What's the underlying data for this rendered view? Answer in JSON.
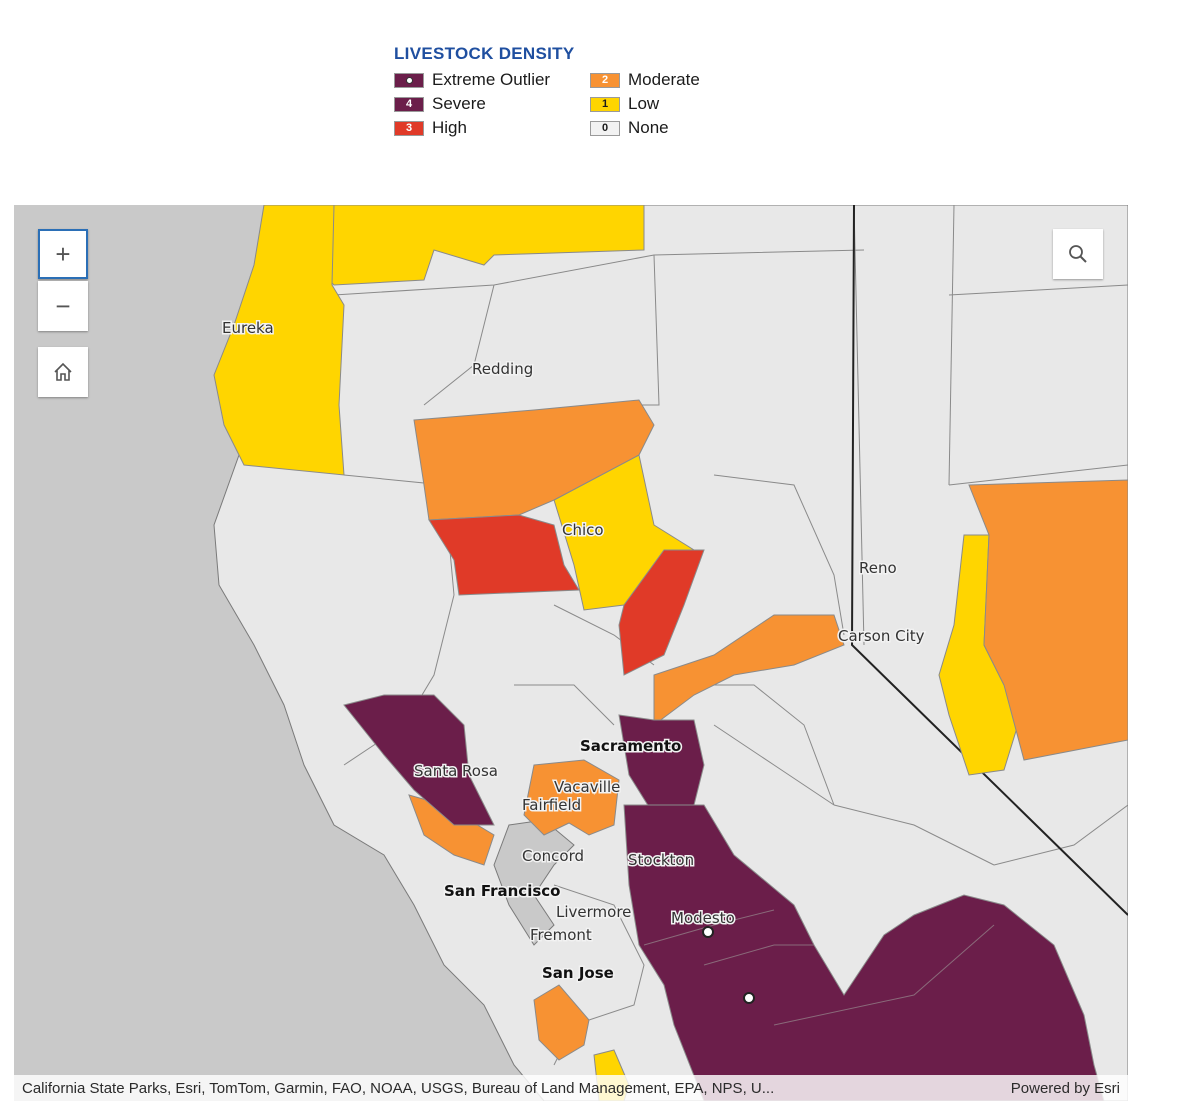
{
  "legend": {
    "title": "LIVESTOCK DENSITY",
    "items": [
      {
        "badge": "",
        "label": "Extreme Outlier",
        "color": "#6b1e4a",
        "badge_color": "#ffffff",
        "marker": "dot"
      },
      {
        "badge": "4",
        "label": "Severe",
        "color": "#6b1e4a",
        "badge_color": "#ffffff"
      },
      {
        "badge": "3",
        "label": "High",
        "color": "#e03a28",
        "badge_color": "#ffffff"
      },
      {
        "badge": "2",
        "label": "Moderate",
        "color": "#f79233",
        "badge_color": "#ffffff"
      },
      {
        "badge": "1",
        "label": "Low",
        "color": "#ffd500",
        "badge_color": "#1b1b1b"
      },
      {
        "badge": "0",
        "label": "None",
        "color": "#f2f2f2",
        "badge_color": "#1b1b1b"
      }
    ]
  },
  "map": {
    "cities": [
      {
        "name": "Eureka",
        "major": false
      },
      {
        "name": "Redding",
        "major": false
      },
      {
        "name": "Chico",
        "major": false
      },
      {
        "name": "Reno",
        "major": false
      },
      {
        "name": "Carson City",
        "major": false
      },
      {
        "name": "Sacramento",
        "major": true
      },
      {
        "name": "Santa Rosa",
        "major": false
      },
      {
        "name": "Vacaville",
        "major": false
      },
      {
        "name": "Fairfield",
        "major": false
      },
      {
        "name": "Concord",
        "major": false
      },
      {
        "name": "Stockton",
        "major": false
      },
      {
        "name": "San Francisco",
        "major": true
      },
      {
        "name": "Livermore",
        "major": false
      },
      {
        "name": "Modesto",
        "major": false
      },
      {
        "name": "Fremont",
        "major": false
      },
      {
        "name": "San Jose",
        "major": true
      }
    ],
    "controls": {
      "zoom_in": "+",
      "zoom_out": "−",
      "home_icon": "home-icon",
      "search_icon": "search-icon"
    },
    "attribution": "California State Parks, Esri, TomTom, Garmin, FAO, NOAA, USGS, Bureau of Land Management, EPA, NPS, U...",
    "powered_by": "Powered by Esri",
    "colors": {
      "ocean": "#c9c9c9",
      "none": "#e8e8e8",
      "low": "#ffd500",
      "moderate": "#f79233",
      "high": "#e03a28",
      "severe": "#6b1e4a"
    }
  }
}
